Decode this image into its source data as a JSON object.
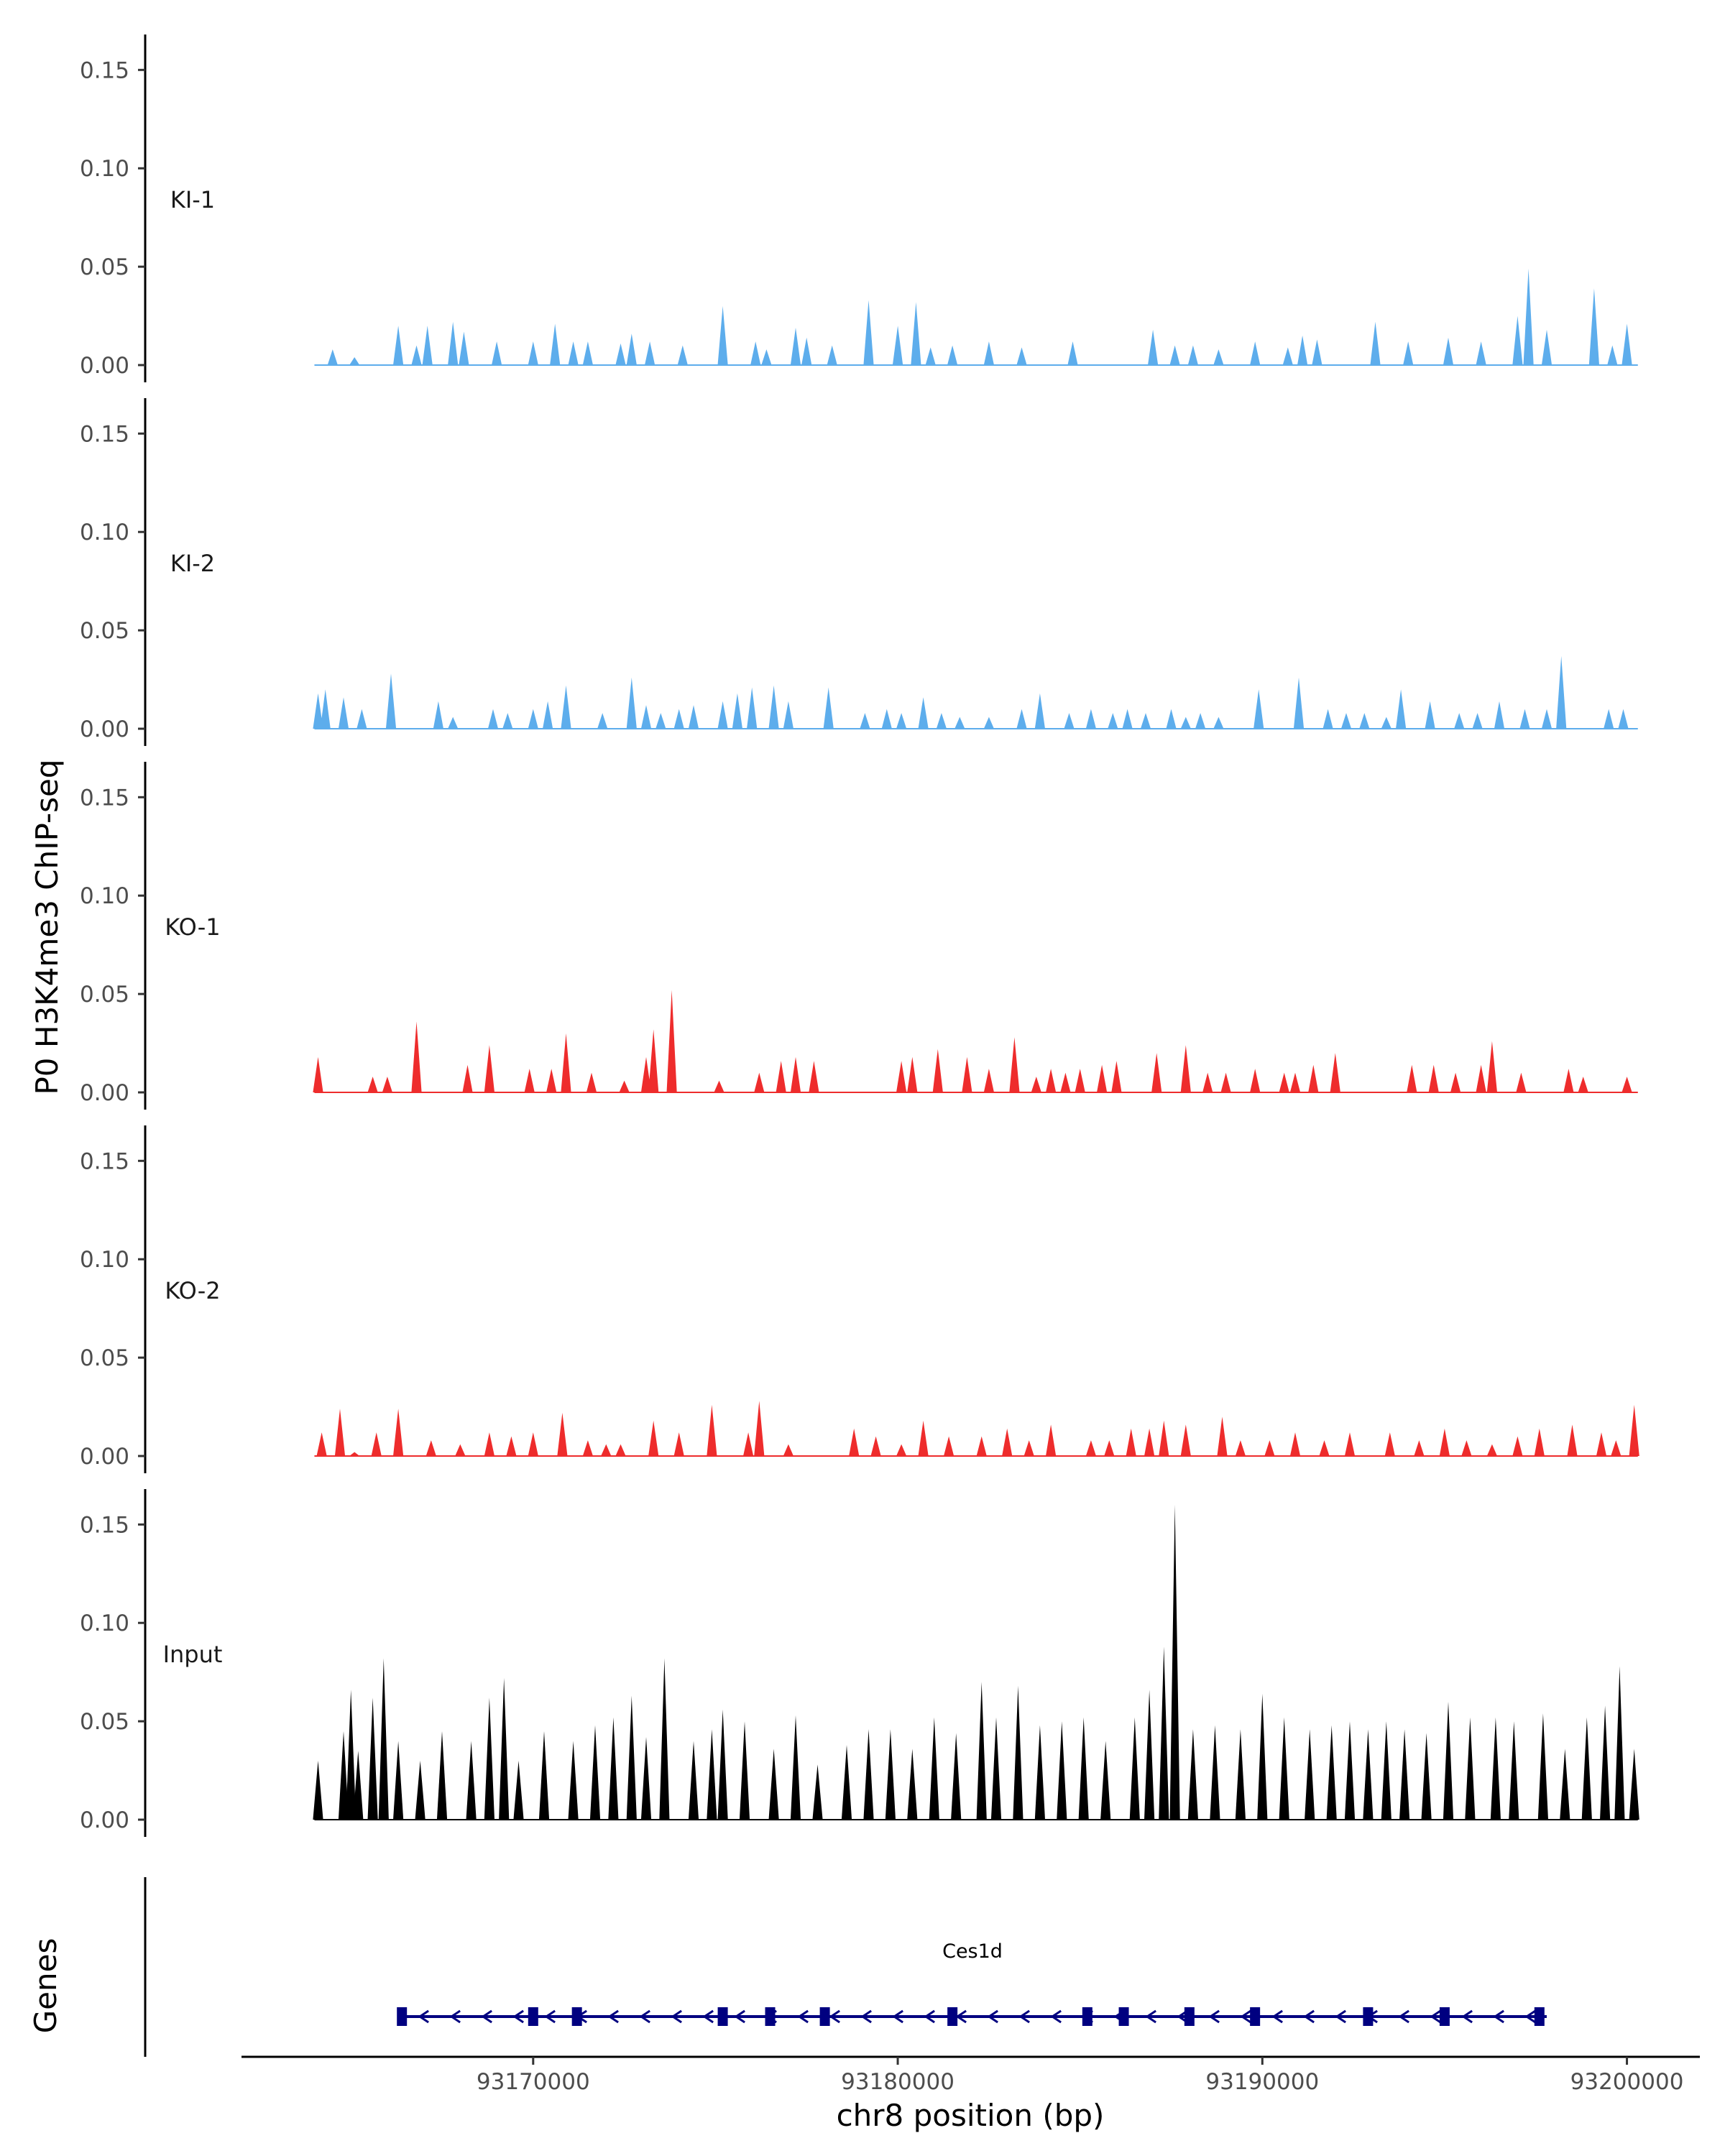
{
  "chart_data": {
    "type": "area",
    "title": "",
    "ylabel": "P0 H3K4me3 ChIP-seq",
    "xlabel": "chr8 position (bp)",
    "ylim": [
      0,
      0.165
    ],
    "xlim": [
      93162000,
      93202000
    ],
    "x_range_data": [
      93164000,
      93200300
    ],
    "y_ticks": [
      0.0,
      0.05,
      0.1,
      0.15
    ],
    "y_tick_labels": [
      "0.00",
      "0.05",
      "0.10",
      "0.15"
    ],
    "x_ticks": [
      93170000,
      93180000,
      93190000,
      93200000
    ],
    "x_tick_labels": [
      "93170000",
      "93180000",
      "93190000",
      "93200000"
    ],
    "gene_track_label": "Genes",
    "colors": {
      "KI": "#5DADEC",
      "KO": "#EE2C2C",
      "Input": "#000000",
      "gene": "#000080"
    },
    "series": [
      {
        "name": "KI-1",
        "color": "#5DADEC",
        "peaks": [
          [
            93164500,
            0.008
          ],
          [
            93165100,
            0.004
          ],
          [
            93166300,
            0.02
          ],
          [
            93166800,
            0.01
          ],
          [
            93167100,
            0.02
          ],
          [
            93167800,
            0.022
          ],
          [
            93168100,
            0.017
          ],
          [
            93169000,
            0.012
          ],
          [
            93170000,
            0.012
          ],
          [
            93170600,
            0.021
          ],
          [
            93171100,
            0.012
          ],
          [
            93171500,
            0.012
          ],
          [
            93172400,
            0.011
          ],
          [
            93172700,
            0.016
          ],
          [
            93173200,
            0.012
          ],
          [
            93174100,
            0.01
          ],
          [
            93175200,
            0.03
          ],
          [
            93176100,
            0.012
          ],
          [
            93176400,
            0.008
          ],
          [
            93177200,
            0.019
          ],
          [
            93177500,
            0.014
          ],
          [
            93178200,
            0.01
          ],
          [
            93179200,
            0.033
          ],
          [
            93180000,
            0.02
          ],
          [
            93180500,
            0.032
          ],
          [
            93180900,
            0.009
          ],
          [
            93181500,
            0.01
          ],
          [
            93182500,
            0.012
          ],
          [
            93183400,
            0.009
          ],
          [
            93184800,
            0.012
          ],
          [
            93187000,
            0.018
          ],
          [
            93187600,
            0.01
          ],
          [
            93188100,
            0.01
          ],
          [
            93188800,
            0.008
          ],
          [
            93189800,
            0.012
          ],
          [
            93190700,
            0.009
          ],
          [
            93191100,
            0.015
          ],
          [
            93191500,
            0.013
          ],
          [
            93193100,
            0.022
          ],
          [
            93194000,
            0.012
          ],
          [
            93195100,
            0.014
          ],
          [
            93196000,
            0.012
          ],
          [
            93197000,
            0.025
          ],
          [
            93197300,
            0.049
          ],
          [
            93197800,
            0.018
          ],
          [
            93199100,
            0.039
          ],
          [
            93199600,
            0.01
          ],
          [
            93200000,
            0.021
          ]
        ]
      },
      {
        "name": "KI-2",
        "color": "#5DADEC",
        "peaks": [
          [
            93164100,
            0.018
          ],
          [
            93164300,
            0.02
          ],
          [
            93164800,
            0.016
          ],
          [
            93165300,
            0.01
          ],
          [
            93166100,
            0.028
          ],
          [
            93167400,
            0.014
          ],
          [
            93167800,
            0.006
          ],
          [
            93168900,
            0.01
          ],
          [
            93169300,
            0.008
          ],
          [
            93170000,
            0.01
          ],
          [
            93170400,
            0.014
          ],
          [
            93170900,
            0.022
          ],
          [
            93171900,
            0.008
          ],
          [
            93172700,
            0.026
          ],
          [
            93173100,
            0.012
          ],
          [
            93173500,
            0.008
          ],
          [
            93174000,
            0.01
          ],
          [
            93174400,
            0.012
          ],
          [
            93175200,
            0.014
          ],
          [
            93175600,
            0.018
          ],
          [
            93176000,
            0.021
          ],
          [
            93176600,
            0.022
          ],
          [
            93177000,
            0.014
          ],
          [
            93178100,
            0.021
          ],
          [
            93179100,
            0.008
          ],
          [
            93179700,
            0.01
          ],
          [
            93180100,
            0.008
          ],
          [
            93180700,
            0.016
          ],
          [
            93181200,
            0.008
          ],
          [
            93181700,
            0.006
          ],
          [
            93182500,
            0.006
          ],
          [
            93183400,
            0.01
          ],
          [
            93183900,
            0.018
          ],
          [
            93184700,
            0.008
          ],
          [
            93185300,
            0.01
          ],
          [
            93185900,
            0.008
          ],
          [
            93186300,
            0.01
          ],
          [
            93186800,
            0.008
          ],
          [
            93187500,
            0.01
          ],
          [
            93187900,
            0.006
          ],
          [
            93188300,
            0.008
          ],
          [
            93188800,
            0.006
          ],
          [
            93189900,
            0.02
          ],
          [
            93191000,
            0.026
          ],
          [
            93191800,
            0.01
          ],
          [
            93192300,
            0.008
          ],
          [
            93192800,
            0.008
          ],
          [
            93193400,
            0.006
          ],
          [
            93193800,
            0.02
          ],
          [
            93194600,
            0.014
          ],
          [
            93195400,
            0.008
          ],
          [
            93195900,
            0.008
          ],
          [
            93196500,
            0.014
          ],
          [
            93197200,
            0.01
          ],
          [
            93197800,
            0.01
          ],
          [
            93198200,
            0.037
          ],
          [
            93199500,
            0.01
          ],
          [
            93199900,
            0.01
          ]
        ]
      },
      {
        "name": "KO-1",
        "color": "#EE2C2C",
        "peaks": [
          [
            93164100,
            0.018
          ],
          [
            93165600,
            0.008
          ],
          [
            93166000,
            0.008
          ],
          [
            93166800,
            0.036
          ],
          [
            93168200,
            0.014
          ],
          [
            93168800,
            0.024
          ],
          [
            93169900,
            0.012
          ],
          [
            93170500,
            0.012
          ],
          [
            93170900,
            0.03
          ],
          [
            93171600,
            0.01
          ],
          [
            93172500,
            0.006
          ],
          [
            93173100,
            0.018
          ],
          [
            93173300,
            0.032
          ],
          [
            93173800,
            0.052
          ],
          [
            93175100,
            0.006
          ],
          [
            93176200,
            0.01
          ],
          [
            93176800,
            0.016
          ],
          [
            93177200,
            0.018
          ],
          [
            93177700,
            0.016
          ],
          [
            93180100,
            0.016
          ],
          [
            93180400,
            0.018
          ],
          [
            93181100,
            0.022
          ],
          [
            93181900,
            0.018
          ],
          [
            93182500,
            0.012
          ],
          [
            93183200,
            0.028
          ],
          [
            93183800,
            0.008
          ],
          [
            93184200,
            0.012
          ],
          [
            93184600,
            0.01
          ],
          [
            93185000,
            0.012
          ],
          [
            93185600,
            0.014
          ],
          [
            93186000,
            0.016
          ],
          [
            93187100,
            0.02
          ],
          [
            93187900,
            0.024
          ],
          [
            93188500,
            0.01
          ],
          [
            93189000,
            0.01
          ],
          [
            93189800,
            0.012
          ],
          [
            93190600,
            0.01
          ],
          [
            93190900,
            0.01
          ],
          [
            93191400,
            0.014
          ],
          [
            93192000,
            0.02
          ],
          [
            93194100,
            0.014
          ],
          [
            93194700,
            0.014
          ],
          [
            93195300,
            0.01
          ],
          [
            93196000,
            0.014
          ],
          [
            93196300,
            0.026
          ],
          [
            93197100,
            0.01
          ],
          [
            93198400,
            0.012
          ],
          [
            93198800,
            0.008
          ],
          [
            93200000,
            0.008
          ]
        ]
      },
      {
        "name": "KO-2",
        "color": "#EE2C2C",
        "peaks": [
          [
            93164200,
            0.012
          ],
          [
            93164700,
            0.024
          ],
          [
            93165100,
            0.002
          ],
          [
            93165700,
            0.012
          ],
          [
            93166300,
            0.024
          ],
          [
            93167200,
            0.008
          ],
          [
            93168000,
            0.006
          ],
          [
            93168800,
            0.012
          ],
          [
            93169400,
            0.01
          ],
          [
            93170000,
            0.012
          ],
          [
            93170800,
            0.022
          ],
          [
            93171500,
            0.008
          ],
          [
            93172000,
            0.006
          ],
          [
            93172400,
            0.006
          ],
          [
            93173300,
            0.018
          ],
          [
            93174000,
            0.012
          ],
          [
            93174900,
            0.026
          ],
          [
            93175900,
            0.012
          ],
          [
            93176200,
            0.028
          ],
          [
            93177000,
            0.006
          ],
          [
            93178800,
            0.014
          ],
          [
            93179400,
            0.01
          ],
          [
            93180100,
            0.006
          ],
          [
            93180700,
            0.018
          ],
          [
            93181400,
            0.01
          ],
          [
            93182300,
            0.01
          ],
          [
            93183000,
            0.014
          ],
          [
            93183600,
            0.008
          ],
          [
            93184200,
            0.016
          ],
          [
            93185300,
            0.008
          ],
          [
            93185800,
            0.008
          ],
          [
            93186400,
            0.014
          ],
          [
            93186900,
            0.014
          ],
          [
            93187300,
            0.018
          ],
          [
            93187900,
            0.016
          ],
          [
            93188900,
            0.02
          ],
          [
            93189400,
            0.008
          ],
          [
            93190200,
            0.008
          ],
          [
            93190900,
            0.012
          ],
          [
            93191700,
            0.008
          ],
          [
            93192400,
            0.012
          ],
          [
            93193500,
            0.012
          ],
          [
            93194300,
            0.008
          ],
          [
            93195000,
            0.014
          ],
          [
            93195600,
            0.008
          ],
          [
            93196300,
            0.006
          ],
          [
            93197000,
            0.01
          ],
          [
            93197600,
            0.014
          ],
          [
            93198500,
            0.016
          ],
          [
            93199300,
            0.012
          ],
          [
            93199700,
            0.008
          ],
          [
            93200200,
            0.026
          ]
        ]
      },
      {
        "name": "Input",
        "color": "#000000",
        "peaks": [
          [
            93164100,
            0.03
          ],
          [
            93164800,
            0.045
          ],
          [
            93165000,
            0.066
          ],
          [
            93165200,
            0.035
          ],
          [
            93165600,
            0.062
          ],
          [
            93165900,
            0.082
          ],
          [
            93166300,
            0.04
          ],
          [
            93166900,
            0.03
          ],
          [
            93167500,
            0.045
          ],
          [
            93168300,
            0.04
          ],
          [
            93168800,
            0.062
          ],
          [
            93169200,
            0.072
          ],
          [
            93169600,
            0.03
          ],
          [
            93170300,
            0.045
          ],
          [
            93171100,
            0.04
          ],
          [
            93171700,
            0.048
          ],
          [
            93172200,
            0.052
          ],
          [
            93172700,
            0.063
          ],
          [
            93173100,
            0.042
          ],
          [
            93173600,
            0.082
          ],
          [
            93174400,
            0.04
          ],
          [
            93174900,
            0.046
          ],
          [
            93175200,
            0.056
          ],
          [
            93175800,
            0.05
          ],
          [
            93176600,
            0.036
          ],
          [
            93177200,
            0.053
          ],
          [
            93177800,
            0.028
          ],
          [
            93178600,
            0.038
          ],
          [
            93179200,
            0.046
          ],
          [
            93179800,
            0.046
          ],
          [
            93180400,
            0.036
          ],
          [
            93181000,
            0.052
          ],
          [
            93181600,
            0.044
          ],
          [
            93182300,
            0.07
          ],
          [
            93182700,
            0.052
          ],
          [
            93183300,
            0.068
          ],
          [
            93183900,
            0.048
          ],
          [
            93184500,
            0.05
          ],
          [
            93185100,
            0.052
          ],
          [
            93185700,
            0.04
          ],
          [
            93186500,
            0.052
          ],
          [
            93186900,
            0.066
          ],
          [
            93187300,
            0.088
          ],
          [
            93187600,
            0.16
          ],
          [
            93188100,
            0.046
          ],
          [
            93188700,
            0.048
          ],
          [
            93189400,
            0.046
          ],
          [
            93190000,
            0.064
          ],
          [
            93190600,
            0.052
          ],
          [
            93191300,
            0.046
          ],
          [
            93191900,
            0.048
          ],
          [
            93192400,
            0.05
          ],
          [
            93192900,
            0.046
          ],
          [
            93193400,
            0.05
          ],
          [
            93193900,
            0.046
          ],
          [
            93194500,
            0.044
          ],
          [
            93195100,
            0.06
          ],
          [
            93195700,
            0.052
          ],
          [
            93196400,
            0.052
          ],
          [
            93196900,
            0.05
          ],
          [
            93197700,
            0.054
          ],
          [
            93198300,
            0.036
          ],
          [
            93198900,
            0.052
          ],
          [
            93199400,
            0.058
          ],
          [
            93199800,
            0.078
          ],
          [
            93200200,
            0.036
          ]
        ]
      }
    ],
    "gene": {
      "name": "Ces1d",
      "start": 93166300,
      "end": 93197800,
      "strand": "-",
      "exons": [
        93166400,
        93170000,
        93171200,
        93175200,
        93176500,
        93178000,
        93181500,
        93185200,
        93186200,
        93188000,
        93189800,
        93192900,
        93195000,
        93197600
      ]
    }
  }
}
